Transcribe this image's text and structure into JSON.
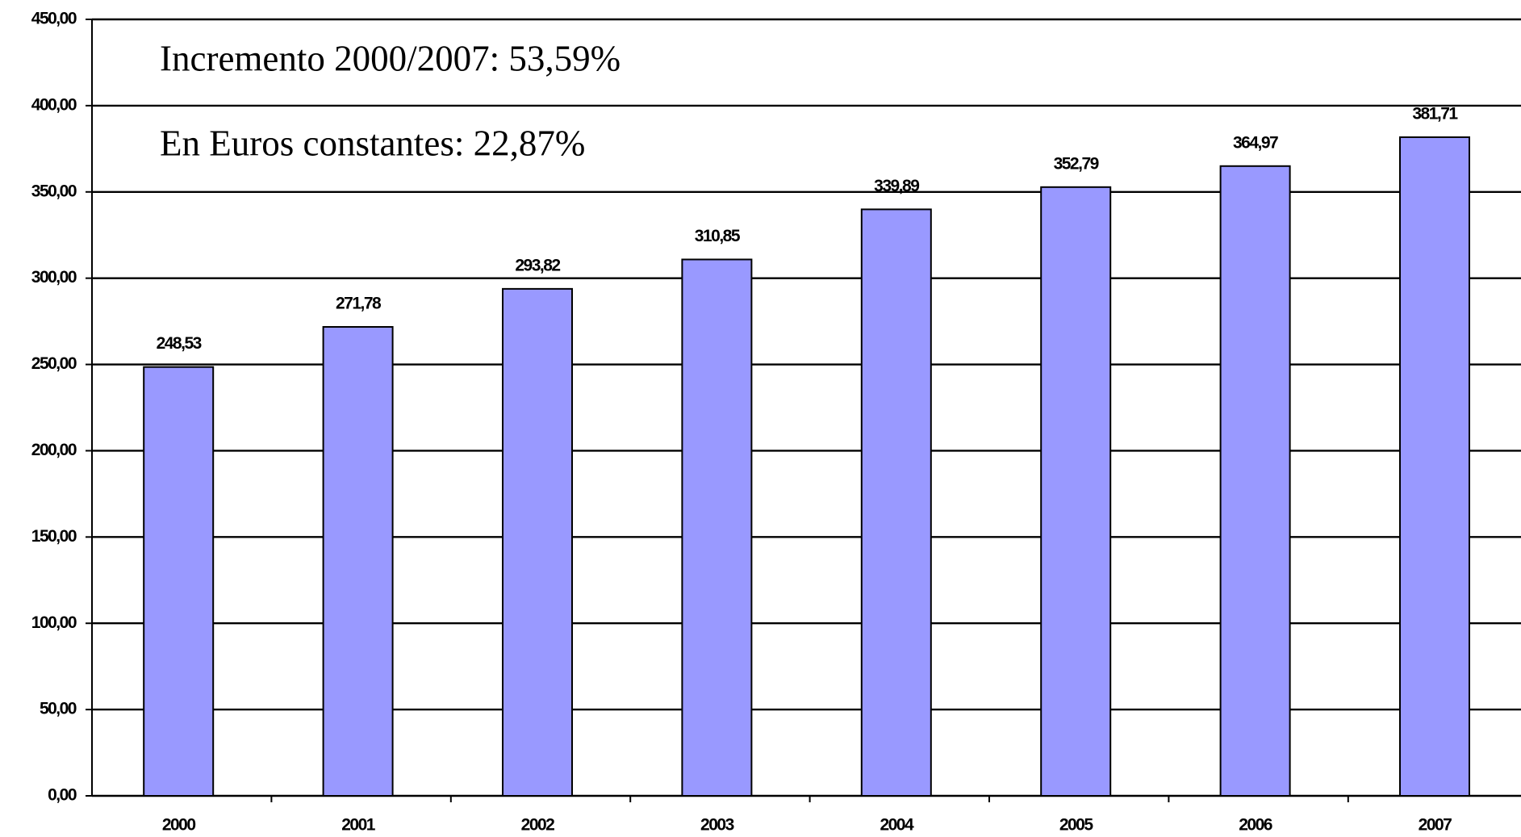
{
  "chart_data": {
    "type": "bar",
    "annotations": [
      "Incremento 2000/2007: 53,59%",
      "En Euros constantes: 22,87%"
    ],
    "categories": [
      "2000",
      "2001",
      "2002",
      "2003",
      "2004",
      "2005",
      "2006",
      "2007"
    ],
    "values": [
      248.53,
      271.78,
      293.82,
      310.85,
      339.89,
      352.79,
      364.97,
      381.71
    ],
    "value_labels": [
      "248,53",
      "271,78",
      "293,82",
      "310,85",
      "339,89",
      "352,79",
      "364,97",
      "381,71"
    ],
    "color": "#9999ff",
    "ylim": [
      0,
      450
    ],
    "yticks": [
      {
        "value": 0,
        "label": "0,00"
      },
      {
        "value": 50,
        "label": "50,00"
      },
      {
        "value": 100,
        "label": "100,00"
      },
      {
        "value": 150,
        "label": "150,00"
      },
      {
        "value": 200,
        "label": "200,00"
      },
      {
        "value": 250,
        "label": "250,00"
      },
      {
        "value": 300,
        "label": "300,00"
      },
      {
        "value": 350,
        "label": "350,00"
      },
      {
        "value": 400,
        "label": "400,00"
      },
      {
        "value": 450,
        "label": "450,00"
      }
    ],
    "grid": true
  }
}
